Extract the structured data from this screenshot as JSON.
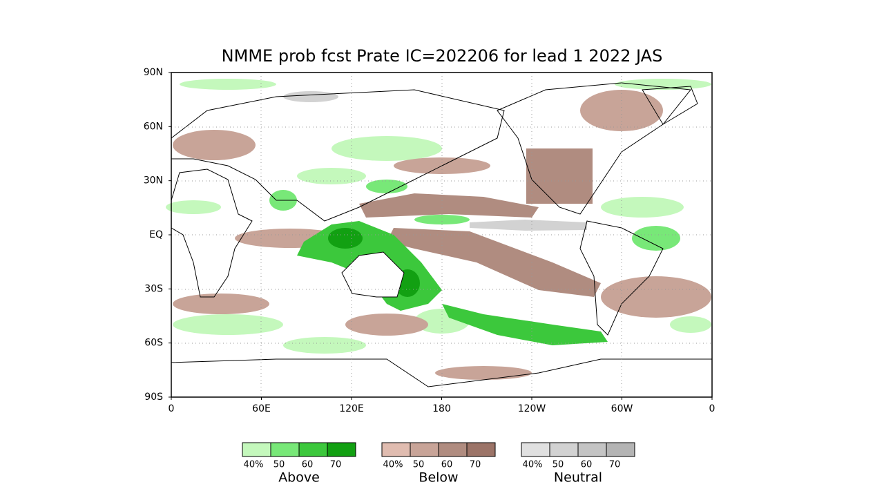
{
  "title": "NMME prob fcst Prate IC=202206 for lead 1 2022 JAS",
  "lat_labels": [
    "90N",
    "60N",
    "30N",
    "EQ",
    "30S",
    "60S",
    "90S"
  ],
  "lon_labels": [
    "0",
    "60E",
    "120E",
    "180",
    "120W",
    "60W",
    "0"
  ],
  "legend": [
    {
      "title": "Above",
      "labels": [
        "40%",
        "50",
        "60",
        "70"
      ],
      "colors": [
        "#c4f8bc",
        "#78e878",
        "#3cc83c",
        "#12a012"
      ]
    },
    {
      "title": "Below",
      "labels": [
        "40%",
        "50",
        "60",
        "70"
      ],
      "colors": [
        "#e0bcb0",
        "#c8a498",
        "#b08c80",
        "#9c7468"
      ]
    },
    {
      "title": "Neutral",
      "labels": [
        "40%",
        "50",
        "60",
        "70"
      ],
      "colors": [
        "#e0e0e0",
        "#d2d2d2",
        "#c4c4c4",
        "#b4b4b4"
      ]
    }
  ]
}
